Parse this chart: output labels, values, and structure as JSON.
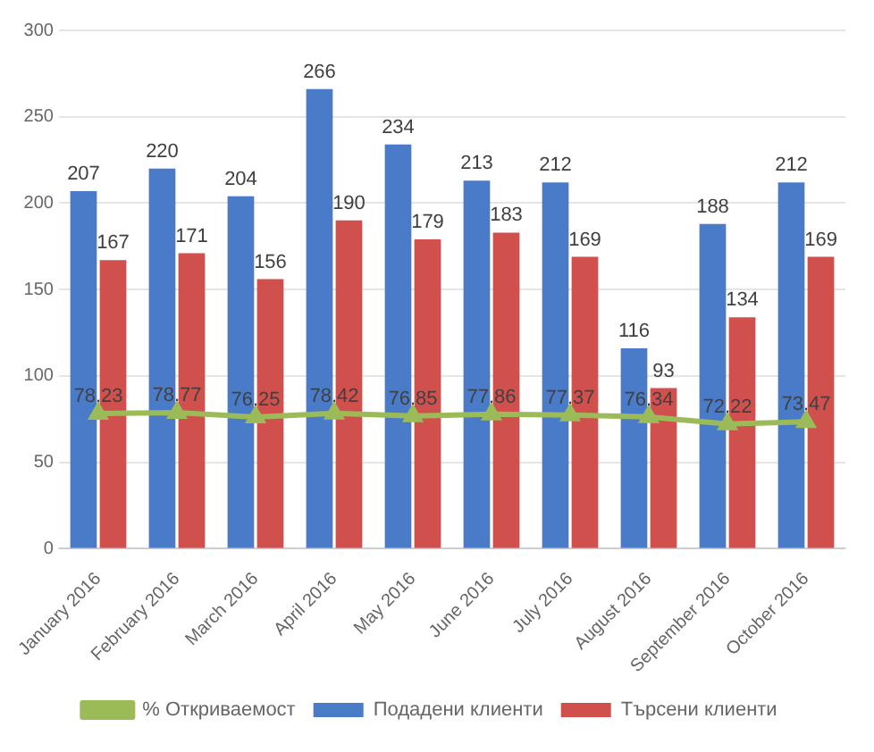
{
  "chart_data": {
    "type": "bar",
    "categories": [
      "January 2016",
      "February 2016",
      "March 2016",
      "April 2016",
      "May 2016",
      "June 2016",
      "July 2016",
      "August 2016",
      "September 2016",
      "October 2016"
    ],
    "series": [
      {
        "name": "Подадени клиенти",
        "color": "#4a7bc8",
        "values": [
          207,
          220,
          204,
          266,
          234,
          213,
          212,
          116,
          188,
          212
        ]
      },
      {
        "name": "Търсени клиенти",
        "color": "#d0504d",
        "values": [
          167,
          171,
          156,
          190,
          179,
          183,
          169,
          93,
          134,
          169
        ]
      },
      {
        "name": "% Откриваемост",
        "type": "line",
        "color": "#9bbb59",
        "values": [
          78.23,
          78.77,
          76.25,
          78.42,
          76.85,
          77.86,
          77.37,
          76.34,
          72.22,
          73.47
        ]
      }
    ],
    "ylim": [
      0,
      300
    ],
    "yticks": [
      0,
      50,
      100,
      150,
      200,
      250,
      300
    ],
    "grid": "y",
    "legend": "bottom",
    "data_labels": true,
    "marker": "triangle"
  }
}
